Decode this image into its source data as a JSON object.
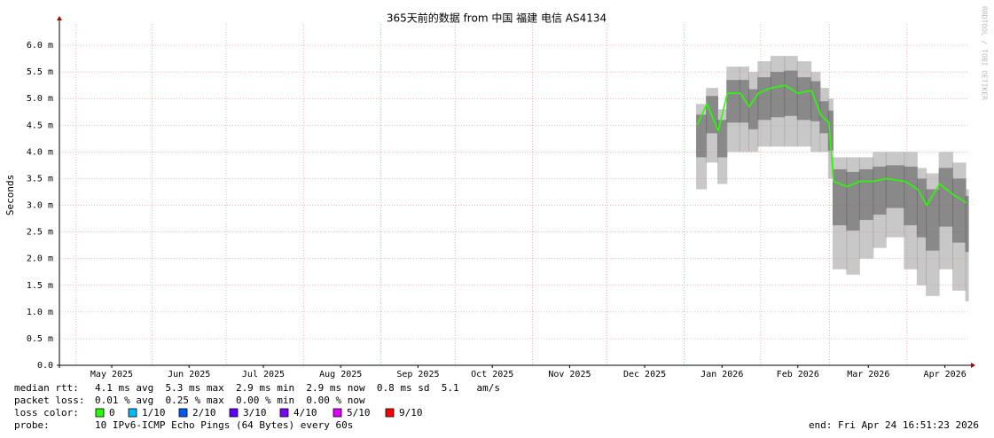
{
  "chart_data": {
    "type": "smokeping",
    "title": "365天前的数据 from 中国 福建 电信 AS4134",
    "y_label": "Seconds",
    "xlim": [
      0,
      12
    ],
    "xticks": [
      {
        "value": 0.69,
        "label": "May 2025"
      },
      {
        "value": 1.71,
        "label": "Jun 2025"
      },
      {
        "value": 2.69,
        "label": "Jul 2025"
      },
      {
        "value": 3.71,
        "label": "Aug 2025"
      },
      {
        "value": 4.73,
        "label": "Sep 2025"
      },
      {
        "value": 5.71,
        "label": "Oct 2025"
      },
      {
        "value": 6.73,
        "label": "Nov 2025"
      },
      {
        "value": 7.72,
        "label": "Dec 2025"
      },
      {
        "value": 8.74,
        "label": "Jan 2026"
      },
      {
        "value": 9.74,
        "label": "Feb 2026"
      },
      {
        "value": 10.67,
        "label": "Mar 2026"
      },
      {
        "value": 11.68,
        "label": "Apr 2026"
      }
    ],
    "xgrid": [
      0.22,
      1.22,
      2.2,
      3.22,
      4.24,
      5.22,
      6.24,
      7.22,
      8.24,
      9.25,
      10.16,
      11.18
    ],
    "ylim": [
      0,
      6.4
    ],
    "yticks": [
      {
        "value": 0,
        "label": "0.0"
      },
      {
        "value": 0.5,
        "label": "0.5 m"
      },
      {
        "value": 1.0,
        "label": "1.0 m"
      },
      {
        "value": 1.5,
        "label": "1.5 m"
      },
      {
        "value": 2.0,
        "label": "2.0 m"
      },
      {
        "value": 2.5,
        "label": "2.5 m"
      },
      {
        "value": 3.0,
        "label": "3.0 m"
      },
      {
        "value": 3.5,
        "label": "3.5 m"
      },
      {
        "value": 4.0,
        "label": "4.0 m"
      },
      {
        "value": 4.5,
        "label": "4.5 m"
      },
      {
        "value": 5.0,
        "label": "5.0 m"
      },
      {
        "value": 5.5,
        "label": "5.5 m"
      },
      {
        "value": 6.0,
        "label": "6.0 m"
      }
    ],
    "grid": true,
    "x": [
      8.41,
      8.54,
      8.69,
      8.81,
      8.98,
      9.1,
      9.22,
      9.39,
      9.57,
      9.74,
      9.92,
      10.04,
      10.15,
      10.21,
      10.39,
      10.56,
      10.74,
      10.91,
      11.15,
      11.32,
      11.44,
      11.61,
      11.79,
      11.96
    ],
    "median": [
      4.5,
      4.9,
      4.4,
      5.1,
      5.1,
      4.85,
      5.1,
      5.2,
      5.25,
      5.1,
      5.15,
      4.7,
      4.55,
      3.45,
      3.35,
      3.45,
      3.45,
      3.5,
      3.45,
      3.3,
      3.0,
      3.4,
      3.2,
      3.05
    ],
    "low": [
      3.3,
      3.8,
      3.4,
      4.0,
      4.0,
      4.0,
      4.1,
      4.1,
      4.1,
      4.1,
      4.0,
      4.0,
      3.5,
      1.8,
      1.7,
      2.0,
      2.2,
      2.4,
      1.8,
      1.5,
      1.3,
      1.8,
      1.4,
      1.2
    ],
    "high": [
      4.9,
      5.2,
      4.8,
      5.6,
      5.6,
      5.5,
      5.7,
      5.8,
      5.8,
      5.7,
      5.5,
      5.2,
      5.0,
      3.9,
      3.9,
      3.9,
      4.0,
      4.0,
      4.0,
      3.7,
      3.6,
      4.0,
      3.8,
      3.3
    ],
    "median_color": "#26ff00",
    "smoke_color": "#9a9a9a"
  },
  "watermark": "RRDTOOL / TOBI OETIKER",
  "footer": {
    "rtt_label": "median rtt:",
    "rtt": "4.1 ms avg  5.3 ms max  2.9 ms min  2.9 ms now  0.8 ms sd  5.1   am/s",
    "loss_label": "packet loss:",
    "loss": "0.01 % avg  0.25 % max  0.00 % min  0.00 % now",
    "legend_label": "loss color:",
    "legend": [
      {
        "label": "0",
        "color": "#26ff00"
      },
      {
        "label": "1/10",
        "color": "#00b8ff"
      },
      {
        "label": "2/10",
        "color": "#0059ff"
      },
      {
        "label": "3/10",
        "color": "#5e00ff"
      },
      {
        "label": "4/10",
        "color": "#7e00ff"
      },
      {
        "label": "5/10",
        "color": "#dd00ff"
      },
      {
        "label": "9/10",
        "color": "#ff0000"
      }
    ],
    "probe_label": "probe:",
    "probe": "10 IPv6-ICMP Echo Pings (64 Bytes) every 60s",
    "end": "end: Fri Apr 24 16:51:23 2026"
  }
}
